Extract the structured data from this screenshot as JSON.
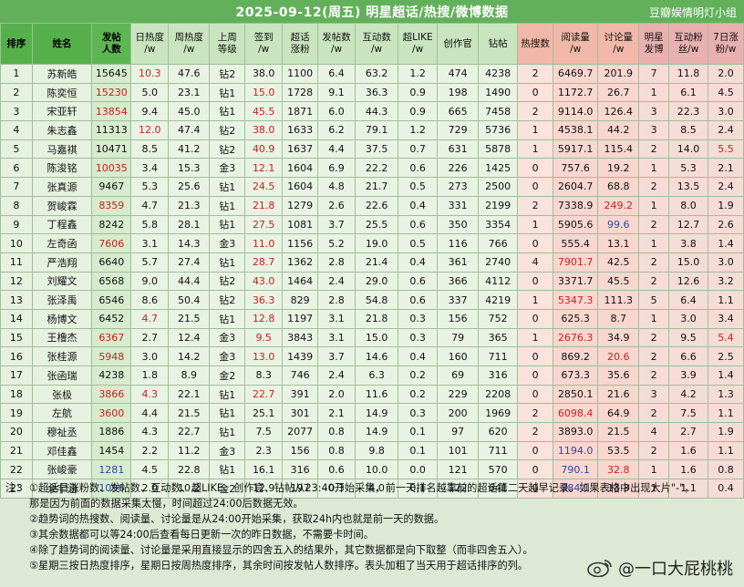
{
  "header": {
    "title": "2025-09-12(周五) 明星超话/热搜/微博数据",
    "credit": "豆瓣娱情明灯小组"
  },
  "columns": [
    [
      "排序"
    ],
    [
      "姓名"
    ],
    [
      "发帖",
      "人数"
    ],
    [
      "日热度",
      "/w"
    ],
    [
      "周热度",
      "/w"
    ],
    [
      "上周",
      "等级"
    ],
    [
      "签到",
      "/w"
    ],
    [
      "超话",
      "涨粉"
    ],
    [
      "发帖数",
      "/w"
    ],
    [
      "互动数",
      "/w"
    ],
    [
      "超LIKE",
      "/w"
    ],
    [
      "创作官"
    ],
    [
      "钻帖"
    ],
    [
      "热搜数"
    ],
    [
      "阅读量",
      "/w"
    ],
    [
      "讨论量",
      "/w"
    ],
    [
      "明星",
      "发博"
    ],
    [
      "互动粉",
      "丝/w"
    ],
    [
      "7日涨",
      "粉/w"
    ]
  ],
  "rows": [
    {
      "rank": "1",
      "name": "苏新皓",
      "post": "15645",
      "daily": "10.3",
      "weekly": "47.6",
      "level": "钻2",
      "checkin": "38.0",
      "fans": "1100",
      "posts": "6.4",
      "interact": "63.2",
      "like": "1.2",
      "creator": "474",
      "diamond": "4238",
      "hot": "2",
      "read": "6469.7",
      "discuss": "201.9",
      "star": "7",
      "ifans": "11.8",
      "gain": "2.0"
    },
    {
      "rank": "2",
      "name": "陈奕恒",
      "post": "15230",
      "daily": "5.0",
      "weekly": "23.1",
      "level": "钻1",
      "checkin": "15.0",
      "fans": "1728",
      "posts": "9.1",
      "interact": "36.3",
      "like": "0.9",
      "creator": "198",
      "diamond": "1490",
      "hot": "0",
      "read": "1172.7",
      "discuss": "26.7",
      "star": "1",
      "ifans": "6.1",
      "gain": "4.5"
    },
    {
      "rank": "3",
      "name": "宋亚轩",
      "post": "13854",
      "daily": "9.4",
      "weekly": "45.0",
      "level": "钻1",
      "checkin": "45.5",
      "fans": "1871",
      "posts": "6.0",
      "interact": "44.3",
      "like": "0.9",
      "creator": "665",
      "diamond": "7458",
      "hot": "2",
      "read": "9114.0",
      "discuss": "126.4",
      "star": "3",
      "ifans": "22.3",
      "gain": "3.0"
    },
    {
      "rank": "4",
      "name": "朱志鑫",
      "post": "11313",
      "daily": "12.0",
      "weekly": "47.4",
      "level": "钻2",
      "checkin": "38.0",
      "fans": "1633",
      "posts": "6.2",
      "interact": "79.1",
      "like": "1.2",
      "creator": "729",
      "diamond": "5736",
      "hot": "1",
      "read": "4538.1",
      "discuss": "44.2",
      "star": "3",
      "ifans": "8.5",
      "gain": "2.4"
    },
    {
      "rank": "5",
      "name": "马嘉祺",
      "post": "10471",
      "daily": "8.5",
      "weekly": "41.2",
      "level": "钻2",
      "checkin": "40.9",
      "fans": "1637",
      "posts": "4.4",
      "interact": "37.5",
      "like": "0.7",
      "creator": "631",
      "diamond": "5878",
      "hot": "1",
      "read": "5917.1",
      "discuss": "115.4",
      "star": "2",
      "ifans": "14.0",
      "gain": "5.5"
    },
    {
      "rank": "6",
      "name": "陈浚铭",
      "post": "10035",
      "daily": "3.4",
      "weekly": "15.3",
      "level": "金3",
      "checkin": "12.1",
      "fans": "1604",
      "posts": "6.9",
      "interact": "22.2",
      "like": "0.6",
      "creator": "226",
      "diamond": "1425",
      "hot": "0",
      "read": "757.6",
      "discuss": "19.2",
      "star": "1",
      "ifans": "5.3",
      "gain": "2.1"
    },
    {
      "rank": "7",
      "name": "张真源",
      "post": "9467",
      "daily": "5.3",
      "weekly": "25.6",
      "level": "钻1",
      "checkin": "24.5",
      "fans": "1604",
      "posts": "4.8",
      "interact": "21.7",
      "like": "0.5",
      "creator": "273",
      "diamond": "2500",
      "hot": "0",
      "read": "2604.7",
      "discuss": "68.8",
      "star": "2",
      "ifans": "13.5",
      "gain": "2.4"
    },
    {
      "rank": "8",
      "name": "贺峻霖",
      "post": "8359",
      "daily": "4.7",
      "weekly": "21.3",
      "level": "钻1",
      "checkin": "21.8",
      "fans": "1279",
      "posts": "2.6",
      "interact": "22.6",
      "like": "0.4",
      "creator": "331",
      "diamond": "2199",
      "hot": "2",
      "read": "7338.9",
      "discuss": "249.2",
      "star": "1",
      "ifans": "8.0",
      "gain": "1.9"
    },
    {
      "rank": "9",
      "name": "丁程鑫",
      "post": "8242",
      "daily": "5.8",
      "weekly": "28.1",
      "level": "钻1",
      "checkin": "27.5",
      "fans": "1081",
      "posts": "3.7",
      "interact": "25.5",
      "like": "0.6",
      "creator": "350",
      "diamond": "3354",
      "hot": "1",
      "read": "5905.6",
      "discuss": "99.6",
      "star": "2",
      "ifans": "12.7",
      "gain": "2.6"
    },
    {
      "rank": "10",
      "name": "左奇函",
      "post": "7606",
      "daily": "3.1",
      "weekly": "14.3",
      "level": "金3",
      "checkin": "11.0",
      "fans": "1156",
      "posts": "5.2",
      "interact": "19.0",
      "like": "0.5",
      "creator": "116",
      "diamond": "766",
      "hot": "0",
      "read": "555.4",
      "discuss": "13.1",
      "star": "1",
      "ifans": "3.8",
      "gain": "1.4"
    },
    {
      "rank": "11",
      "name": "严浩翔",
      "post": "6640",
      "daily": "5.7",
      "weekly": "27.4",
      "level": "钻1",
      "checkin": "28.7",
      "fans": "1362",
      "posts": "2.8",
      "interact": "21.4",
      "like": "0.4",
      "creator": "361",
      "diamond": "2740",
      "hot": "4",
      "read": "7901.7",
      "discuss": "42.5",
      "star": "2",
      "ifans": "15.0",
      "gain": "3.0"
    },
    {
      "rank": "12",
      "name": "刘耀文",
      "post": "6568",
      "daily": "9.0",
      "weekly": "44.4",
      "level": "钻2",
      "checkin": "43.0",
      "fans": "1464",
      "posts": "2.4",
      "interact": "29.0",
      "like": "0.6",
      "creator": "366",
      "diamond": "4112",
      "hot": "0",
      "read": "3371.7",
      "discuss": "45.5",
      "star": "2",
      "ifans": "12.6",
      "gain": "3.2"
    },
    {
      "rank": "13",
      "name": "张泽禹",
      "post": "6546",
      "daily": "8.6",
      "weekly": "50.4",
      "level": "钻2",
      "checkin": "36.3",
      "fans": "829",
      "posts": "2.8",
      "interact": "54.8",
      "like": "0.6",
      "creator": "337",
      "diamond": "4219",
      "hot": "1",
      "read": "5347.3",
      "discuss": "111.3",
      "star": "5",
      "ifans": "6.4",
      "gain": "1.1"
    },
    {
      "rank": "14",
      "name": "杨博文",
      "post": "6452",
      "daily": "4.7",
      "weekly": "21.5",
      "level": "钻1",
      "checkin": "12.8",
      "fans": "1197",
      "posts": "3.1",
      "interact": "21.8",
      "like": "0.3",
      "creator": "156",
      "diamond": "752",
      "hot": "0",
      "read": "625.3",
      "discuss": "8.7",
      "star": "1",
      "ifans": "3.0",
      "gain": "3.4"
    },
    {
      "rank": "15",
      "name": "王橹杰",
      "post": "6367",
      "daily": "2.7",
      "weekly": "12.4",
      "level": "金3",
      "checkin": "9.5",
      "fans": "3843",
      "posts": "3.1",
      "interact": "15.0",
      "like": "0.3",
      "creator": "79",
      "diamond": "365",
      "hot": "1",
      "read": "2676.3",
      "discuss": "34.9",
      "star": "2",
      "ifans": "9.5",
      "gain": "5.4"
    },
    {
      "rank": "16",
      "name": "张桂源",
      "post": "5948",
      "daily": "3.0",
      "weekly": "14.2",
      "level": "金3",
      "checkin": "13.0",
      "fans": "1439",
      "posts": "3.7",
      "interact": "14.6",
      "like": "0.4",
      "creator": "160",
      "diamond": "711",
      "hot": "0",
      "read": "869.2",
      "discuss": "20.6",
      "star": "2",
      "ifans": "6.6",
      "gain": "2.5"
    },
    {
      "rank": "17",
      "name": "张函瑞",
      "post": "4238",
      "daily": "1.8",
      "weekly": "8.9",
      "level": "金2",
      "checkin": "8.3",
      "fans": "746",
      "posts": "2.4",
      "interact": "6.3",
      "like": "0.2",
      "creator": "69",
      "diamond": "316",
      "hot": "0",
      "read": "673.3",
      "discuss": "35.6",
      "star": "2",
      "ifans": "3.9",
      "gain": "1.4"
    },
    {
      "rank": "18",
      "name": "张极",
      "post": "3866",
      "daily": "4.3",
      "weekly": "22.1",
      "level": "钻1",
      "checkin": "22.7",
      "fans": "391",
      "posts": "2.0",
      "interact": "11.6",
      "like": "0.2",
      "creator": "229",
      "diamond": "2208",
      "hot": "0",
      "read": "2850.1",
      "discuss": "21.6",
      "star": "3",
      "ifans": "4.2",
      "gain": "1.3"
    },
    {
      "rank": "19",
      "name": "左航",
      "post": "3600",
      "daily": "4.4",
      "weekly": "21.5",
      "level": "钻1",
      "checkin": "25.1",
      "fans": "301",
      "posts": "2.1",
      "interact": "14.9",
      "like": "0.3",
      "creator": "200",
      "diamond": "1969",
      "hot": "2",
      "read": "6098.4",
      "discuss": "64.9",
      "star": "2",
      "ifans": "7.5",
      "gain": "1.1"
    },
    {
      "rank": "20",
      "name": "穆祉丞",
      "post": "1886",
      "daily": "4.3",
      "weekly": "22.7",
      "level": "钻1",
      "checkin": "7.5",
      "fans": "2077",
      "posts": "0.8",
      "interact": "14.9",
      "like": "0.1",
      "creator": "97",
      "diamond": "620",
      "hot": "2",
      "read": "3893.0",
      "discuss": "21.5",
      "star": "4",
      "ifans": "2.7",
      "gain": "1.9"
    },
    {
      "rank": "21",
      "name": "邓佳鑫",
      "post": "1454",
      "daily": "2.2",
      "weekly": "11.2",
      "level": "金3",
      "checkin": "2.3",
      "fans": "156",
      "posts": "0.8",
      "interact": "9.8",
      "like": "0.1",
      "creator": "101",
      "diamond": "711",
      "hot": "0",
      "read": "1194.0",
      "discuss": "53.5",
      "star": "2",
      "ifans": "1.6",
      "gain": "1.1"
    },
    {
      "rank": "22",
      "name": "张峻豪",
      "post": "1281",
      "daily": "4.5",
      "weekly": "22.8",
      "level": "钻1",
      "checkin": "16.1",
      "fans": "316",
      "posts": "0.6",
      "interact": "10.0",
      "like": "0.0",
      "creator": "121",
      "diamond": "570",
      "hot": "0",
      "read": "790.1",
      "discuss": "32.8",
      "star": "1",
      "ifans": "1.6",
      "gain": "0.8"
    },
    {
      "rank": "23",
      "name": "余宇涵",
      "post": "1096",
      "daily": "2.0",
      "weekly": "10.2",
      "level": "金2",
      "checkin": "12.9",
      "fans": "197",
      "posts": "0.3",
      "interact": "4.0",
      "like": "0.1",
      "creator": "122",
      "diamond": "641",
      "hot": "0",
      "read": "884.1",
      "discuss": "13.3",
      "star": "1",
      "ifans": "1.1",
      "gain": "0.4"
    }
  ],
  "notes": {
    "label": "注：",
    "n1": "①超话日涨粉数、发帖数、互动数、超LIKE、创作官、钻帖从23:40开始采集，前一天排名越靠前的超话第二天越早记录。如果表格中出现大片\"-\"，",
    "n1b": "那是因为前面的数据采集太慢，时间超过24:00后数据无效。",
    "n2": "②趋势词的热搜数、阅读量、讨论量是从24:00开始采集，获取24h内也就是前一天的数据。",
    "n3": "③其余数据都可以等24:00后查看每日更新一次的昨日数据，不需要卡时间。",
    "n4": "④除了趋势词的阅读量、讨论量是采用直接显示的四舍五入的结果外，其它数据都是向下取整（而非四舍五入）。",
    "n5": "⑤星期三按日热度排序，星期日按周热度排序，其余时间按发帖人数排序。表头加粗了当天用于超话排序的列。"
  },
  "watermark": "@一口大屁桃桃",
  "colors": {
    "header_green": "#62b15a",
    "red": "#c8211c",
    "blue": "#2a48a8"
  }
}
